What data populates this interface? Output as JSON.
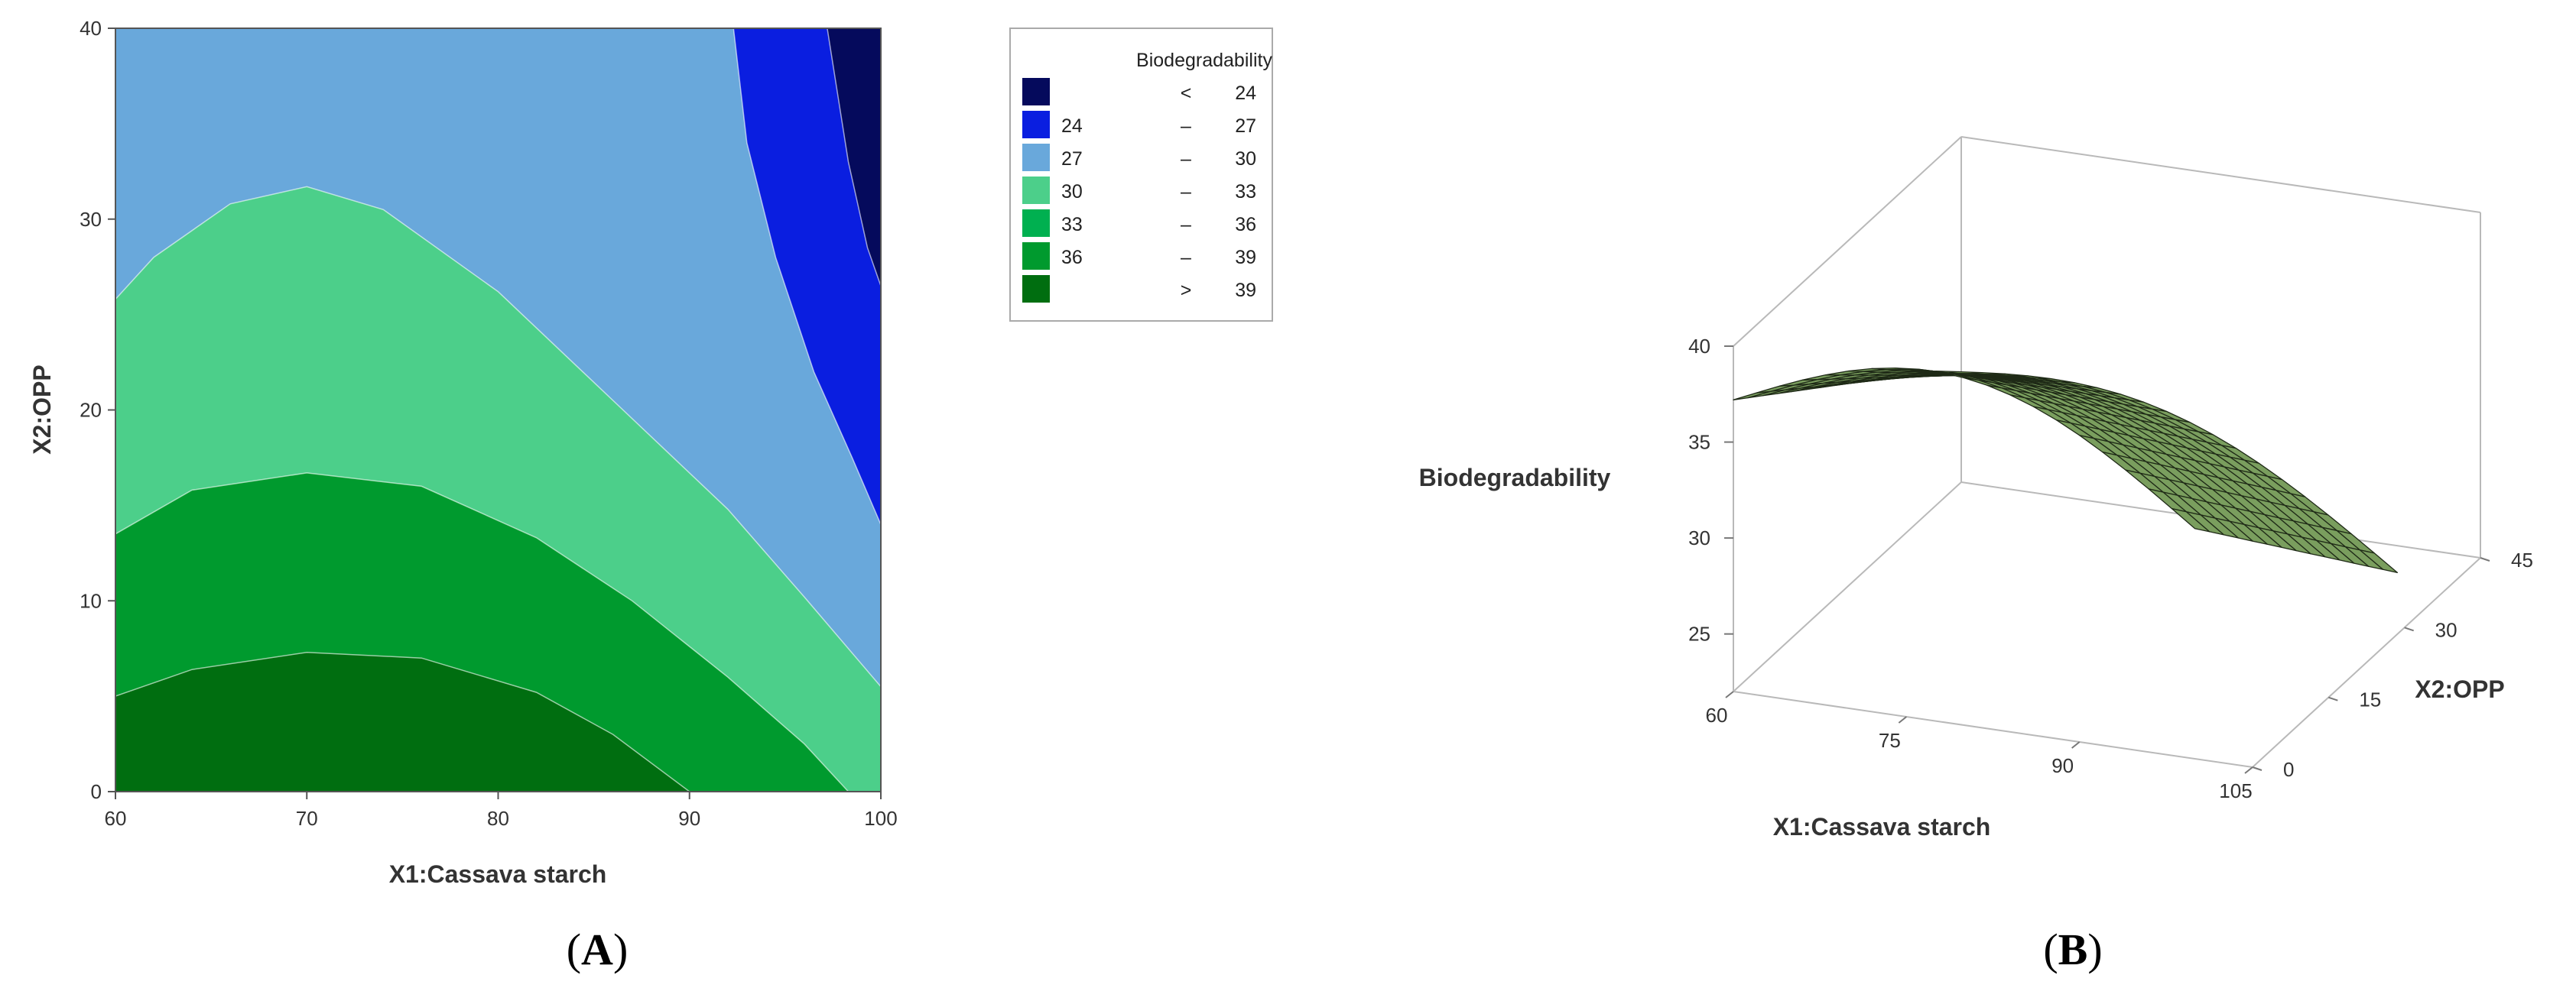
{
  "chart_data": [
    {
      "type": "contour",
      "panel_label": "(A)",
      "panel_letter": "A",
      "xlabel": "X1:Cassava starch",
      "ylabel": "X2:OPP",
      "xlim": [
        60,
        100
      ],
      "ylim": [
        0,
        40
      ],
      "xticks": [
        "60",
        "70",
        "80",
        "90",
        "100"
      ],
      "yticks": [
        "0",
        "10",
        "20",
        "30",
        "40"
      ],
      "legend": {
        "title": "Biodegradability",
        "position": "right",
        "entries": [
          {
            "low": "",
            "op": "<",
            "high": "24",
            "color": "#050a5c"
          },
          {
            "low": "24",
            "op": "–",
            "high": "27",
            "color": "#0a1ee0"
          },
          {
            "low": "27",
            "op": "–",
            "high": "30",
            "color": "#69a8db"
          },
          {
            "low": "30",
            "op": "–",
            "high": "33",
            "color": "#4ccf8a"
          },
          {
            "low": "33",
            "op": "–",
            "high": "36",
            "color": "#00b050"
          },
          {
            "low": "36",
            "op": "–",
            "high": "39",
            "color": "#009a2e"
          },
          {
            "low": "",
            "op": ">",
            "high": "39",
            "color": "#006e10"
          }
        ]
      },
      "contours": [
        {
          "level": 39,
          "points": [
            [
              60,
              5
            ],
            [
              64,
              6.4
            ],
            [
              70,
              7.3
            ],
            [
              76,
              7
            ],
            [
              82,
              5.2
            ],
            [
              86,
              3
            ],
            [
              90,
              0
            ]
          ]
        },
        {
          "level": 36,
          "points": [
            [
              60,
              13.5
            ],
            [
              64,
              15.8
            ],
            [
              70,
              16.7
            ],
            [
              76,
              16
            ],
            [
              82,
              13.3
            ],
            [
              87,
              10
            ],
            [
              92,
              6
            ],
            [
              96,
              2.5
            ],
            [
              98.3,
              0
            ]
          ]
        },
        {
          "level": 33,
          "points": [
            [
              60,
              25.8
            ],
            [
              62,
              28
            ],
            [
              66,
              30.8
            ],
            [
              70,
              31.7
            ],
            [
              74,
              30.5
            ],
            [
              80,
              26.2
            ],
            [
              86,
              20.5
            ],
            [
              92,
              14.8
            ],
            [
              96,
              10.2
            ],
            [
              100,
              5.5
            ]
          ]
        },
        {
          "level": 30,
          "points": [
            [
              92.3,
              40
            ],
            [
              93,
              34
            ],
            [
              94.5,
              28
            ],
            [
              96.5,
              22
            ],
            [
              98.5,
              17.5
            ],
            [
              100,
              14
            ]
          ]
        },
        {
          "level": 27,
          "points": [
            [
              97.2,
              40
            ],
            [
              98.3,
              33
            ],
            [
              99.3,
              28.5
            ],
            [
              100,
              26.5
            ]
          ]
        }
      ]
    },
    {
      "type": "surface",
      "panel_label": "(B)",
      "panel_letter": "B",
      "zlabel": "Biodegradability",
      "xlabel": "X1:Cassava starch",
      "ylabel": "X2:OPP",
      "xlim": [
        60,
        105
      ],
      "ylim": [
        0,
        45
      ],
      "zlim": [
        22,
        40
      ],
      "xticks": [
        "60",
        "75",
        "90",
        "105"
      ],
      "yticks": [
        "0",
        "15",
        "30",
        "45"
      ],
      "zticks": [
        "25",
        "30",
        "35",
        "40"
      ],
      "surface_color": "#7a9e5e",
      "surface_x_range": [
        60,
        100
      ],
      "surface_y_range": [
        0,
        40
      ],
      "surface_corners": [
        {
          "x": 60,
          "y": 0,
          "z": 37.2
        },
        {
          "x": 100,
          "y": 0,
          "z": 34.0
        },
        {
          "x": 60,
          "y": 40,
          "z": 29.0
        },
        {
          "x": 100,
          "y": 40,
          "z": 22.0
        }
      ]
    }
  ]
}
